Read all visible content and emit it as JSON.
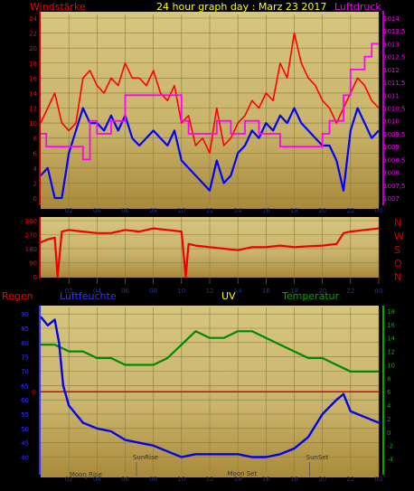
{
  "header": {
    "title": "24 hour graph day : Marz 23 2017",
    "left_label": "Windstärke",
    "right_label": "Luftdruck"
  },
  "colors": {
    "background": "#000000",
    "panel_top": "#d7c67e",
    "panel_bottom": "#a9893a",
    "grid": "#8a7a44",
    "wind": "#ff0000",
    "gust_avg": "#0000ff",
    "pressure": "#ff00ff",
    "direction": "#ee0000",
    "humidity": "#0000ee",
    "temperature": "#008800",
    "uv": "#ffff00",
    "rain_zero": "#dd0000",
    "wind_axis": "#ff0000",
    "pressure_axis": "#ff00ff",
    "humidity_axis": "#3333ff",
    "temperature_axis": "#00aa00"
  },
  "time_ticks": [
    "02",
    "04",
    "06",
    "08",
    "10",
    "12",
    "14",
    "16",
    "18",
    "20",
    "22",
    "00"
  ],
  "panel1": {
    "left_ticks": [
      "0",
      "2",
      "4",
      "6",
      "8",
      "10",
      "12",
      "14",
      "16",
      "18",
      "20",
      "22",
      "24"
    ],
    "right_ticks": [
      "1007",
      "1007,5",
      "1008",
      "1008,5",
      "1009",
      "1009,5",
      "1010",
      "1010,5",
      "1011",
      "1011,5",
      "1012",
      "1012,5",
      "1013",
      "1013,5",
      "1014"
    ]
  },
  "panel2": {
    "ticks": [
      "0",
      "90",
      "180",
      "270",
      "360"
    ],
    "compass": [
      "N",
      "W",
      "S",
      "O",
      "N"
    ]
  },
  "panel3": {
    "labels": {
      "rain": "Regen",
      "humidity": "Luftfeuchte",
      "uv": "UV",
      "temperature": "Temperatur"
    },
    "rain_ticks": [
      "0"
    ],
    "humidity_ticks": [
      "40",
      "45",
      "50",
      "55",
      "60",
      "65",
      "70",
      "75",
      "80",
      "85",
      "90"
    ],
    "temperature_ticks": [
      "-4",
      "-2",
      "0",
      "2",
      "4",
      "6",
      "8",
      "10",
      "12",
      "14",
      "16",
      "18"
    ],
    "annotations": {
      "moon_rise": "Moon Rise",
      "sun_rise": "SunRise",
      "moon_set": "Moon Set",
      "sun_set": "SunSet"
    }
  },
  "chart_data": [
    {
      "type": "line",
      "x_unit": "hour",
      "xlim": [
        0,
        24
      ],
      "ylim": [
        0,
        24
      ],
      "y2lim": [
        1007,
        1014
      ],
      "series": [
        {
          "name": "Windstärke",
          "x": [
            0,
            0.5,
            1,
            1.5,
            2,
            2.5,
            3,
            3.5,
            4,
            4.5,
            5,
            5.5,
            6,
            6.5,
            7,
            7.5,
            8,
            8.5,
            9,
            9.5,
            10,
            10.5,
            11,
            11.5,
            12,
            12.5,
            13,
            13.5,
            14,
            14.5,
            15,
            15.5,
            16,
            16.5,
            17,
            17.5,
            18,
            18.5,
            19,
            19.5,
            20,
            20.5,
            21,
            21.5,
            22,
            22.5,
            23,
            23.5,
            24
          ],
          "values": [
            10,
            12,
            14,
            10,
            9,
            10,
            16,
            17,
            15,
            14,
            16,
            15,
            18,
            16,
            16,
            15,
            17,
            14,
            13,
            15,
            10,
            11,
            7,
            8,
            6,
            12,
            7,
            8,
            10,
            11,
            13,
            12,
            14,
            13,
            18,
            16,
            22,
            18,
            16,
            15,
            13,
            12,
            10,
            12,
            14,
            16,
            15,
            13,
            12
          ]
        },
        {
          "name": "Mittel",
          "x": [
            0,
            0.5,
            1,
            1.5,
            2,
            2.5,
            3,
            3.5,
            4,
            4.5,
            5,
            5.5,
            6,
            6.5,
            7,
            7.5,
            8,
            8.5,
            9,
            9.5,
            10,
            10.5,
            11,
            11.5,
            12,
            12.5,
            13,
            13.5,
            14,
            14.5,
            15,
            15.5,
            16,
            16.5,
            17,
            17.5,
            18,
            18.5,
            19,
            19.5,
            20,
            20.5,
            21,
            21.5,
            22,
            22.5,
            23,
            23.5,
            24
          ],
          "values": [
            3,
            4,
            0,
            0,
            6,
            9,
            12,
            10,
            10,
            9,
            11,
            9,
            11,
            8,
            7,
            8,
            9,
            8,
            7,
            9,
            5,
            4,
            3,
            2,
            1,
            5,
            2,
            3,
            6,
            7,
            9,
            8,
            10,
            9,
            11,
            10,
            12,
            10,
            9,
            8,
            7,
            7,
            5,
            1,
            9,
            12,
            10,
            8,
            9
          ]
        },
        {
          "name": "Luftdruck",
          "axis": "right",
          "x": [
            0,
            0.4,
            1,
            1.5,
            2,
            2.5,
            3,
            3.5,
            4,
            4.5,
            5,
            5.5,
            6,
            6.5,
            7,
            7.5,
            8,
            8.5,
            9,
            9.5,
            10,
            10.5,
            11,
            11.5,
            12,
            12.5,
            13,
            13.5,
            14,
            14.5,
            15,
            15.5,
            16,
            16.5,
            17,
            17.5,
            18,
            18.5,
            19,
            19.5,
            20,
            20.5,
            21,
            21.5,
            22,
            22.5,
            23,
            23.5,
            24
          ],
          "values": [
            1009.5,
            1009,
            1009,
            1009,
            1009,
            1009,
            1008.5,
            1010,
            1009.5,
            1009.5,
            1010,
            1010,
            1011,
            1011,
            1011,
            1011,
            1011,
            1011,
            1011,
            1011,
            1010,
            1009.5,
            1009.5,
            1009.5,
            1009.5,
            1010,
            1010,
            1009.5,
            1009.5,
            1010,
            1010,
            1009.5,
            1009.5,
            1009.5,
            1009,
            1009,
            1009,
            1009,
            1009,
            1009,
            1009.5,
            1010,
            1010,
            1011,
            1012,
            1012,
            1012.5,
            1013,
            1013
          ]
        }
      ]
    },
    {
      "type": "line",
      "x_unit": "hour",
      "xlim": [
        0,
        24
      ],
      "ylim": [
        0,
        360
      ],
      "series": [
        {
          "name": "Windrichtung",
          "x": [
            0,
            0.5,
            1,
            1.2,
            1.5,
            2,
            3,
            4,
            5,
            6,
            7,
            8,
            9,
            10,
            10.3,
            10.5,
            11,
            12,
            13,
            14,
            15,
            16,
            17,
            18,
            19,
            20,
            21,
            21.5,
            22,
            23,
            24
          ],
          "values": [
            220,
            240,
            250,
            0,
            290,
            300,
            290,
            280,
            280,
            300,
            290,
            310,
            300,
            290,
            0,
            210,
            200,
            190,
            180,
            170,
            190,
            190,
            200,
            190,
            195,
            200,
            210,
            280,
            290,
            300,
            310
          ]
        }
      ]
    },
    {
      "type": "line",
      "x_unit": "hour",
      "xlim": [
        0,
        24
      ],
      "ylim": [
        37,
        91
      ],
      "y2lim": [
        -5,
        18
      ],
      "series": [
        {
          "name": "Luftfeuchte",
          "x": [
            0,
            0.5,
            1,
            1.3,
            1.6,
            2,
            3,
            4,
            5,
            6,
            7,
            8,
            9,
            10,
            11,
            12,
            13,
            14,
            15,
            16,
            17,
            18,
            19,
            20,
            21,
            21.5,
            22,
            22.5,
            23,
            24
          ],
          "values": [
            89,
            86,
            88,
            80,
            65,
            58,
            52,
            50,
            49,
            46,
            45,
            44,
            42,
            40,
            41,
            41,
            41,
            41,
            40,
            40,
            41,
            43,
            47,
            55,
            60,
            62,
            56,
            55,
            54,
            52
          ]
        },
        {
          "name": "Temperatur",
          "axis": "right",
          "x": [
            0,
            1,
            2,
            3,
            4,
            5,
            6,
            7,
            8,
            9,
            10,
            11,
            12,
            13,
            14,
            15,
            16,
            17,
            18,
            19,
            20,
            21,
            22,
            23,
            24
          ],
          "values": [
            13,
            13,
            12,
            12,
            11,
            11,
            10,
            10,
            10,
            11,
            13,
            15,
            14,
            14,
            15,
            15,
            14,
            13,
            12,
            11,
            11,
            10,
            9,
            9,
            9
          ]
        }
      ]
    }
  ]
}
